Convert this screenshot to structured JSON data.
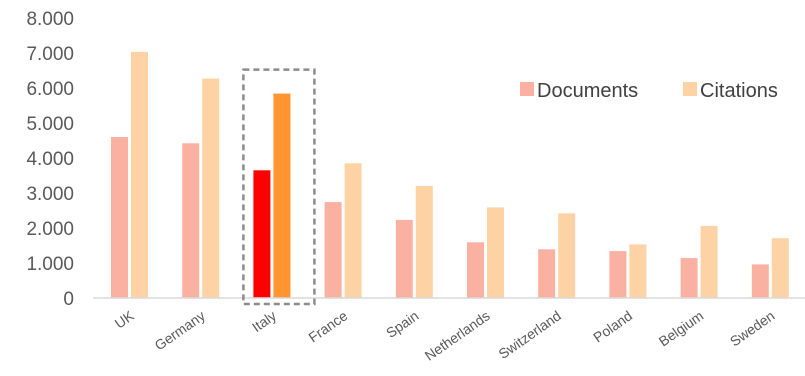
{
  "chart_data": {
    "type": "bar",
    "categories": [
      "UK",
      "Germany",
      "Italy",
      "France",
      "Spain",
      "Netherlands",
      "Switzerland",
      "Poland",
      "Belgium",
      "Sweden"
    ],
    "series": [
      {
        "name": "Documents",
        "values": [
          4600,
          4420,
          3650,
          2740,
          2230,
          1590,
          1390,
          1340,
          1140,
          960
        ]
      },
      {
        "name": "Citations",
        "values": [
          7030,
          6270,
          5840,
          3850,
          3200,
          2590,
          2420,
          1530,
          2060,
          1710
        ]
      }
    ],
    "yticks": [
      "0",
      "1.000",
      "2.000",
      "3.000",
      "4.000",
      "5.000",
      "6.000",
      "7.000",
      "8.000"
    ],
    "ylim": [
      0,
      8000
    ],
    "legend_position": "top-right",
    "highlight_category": "Italy",
    "colors": {
      "documents": "#fbb1a1",
      "citations": "#fdd3a6",
      "documents_highlight": "#ff0000",
      "citations_highlight": "#ff9430",
      "axis": "#d9d9d9",
      "highlight_box": "#8c8c8c"
    }
  }
}
